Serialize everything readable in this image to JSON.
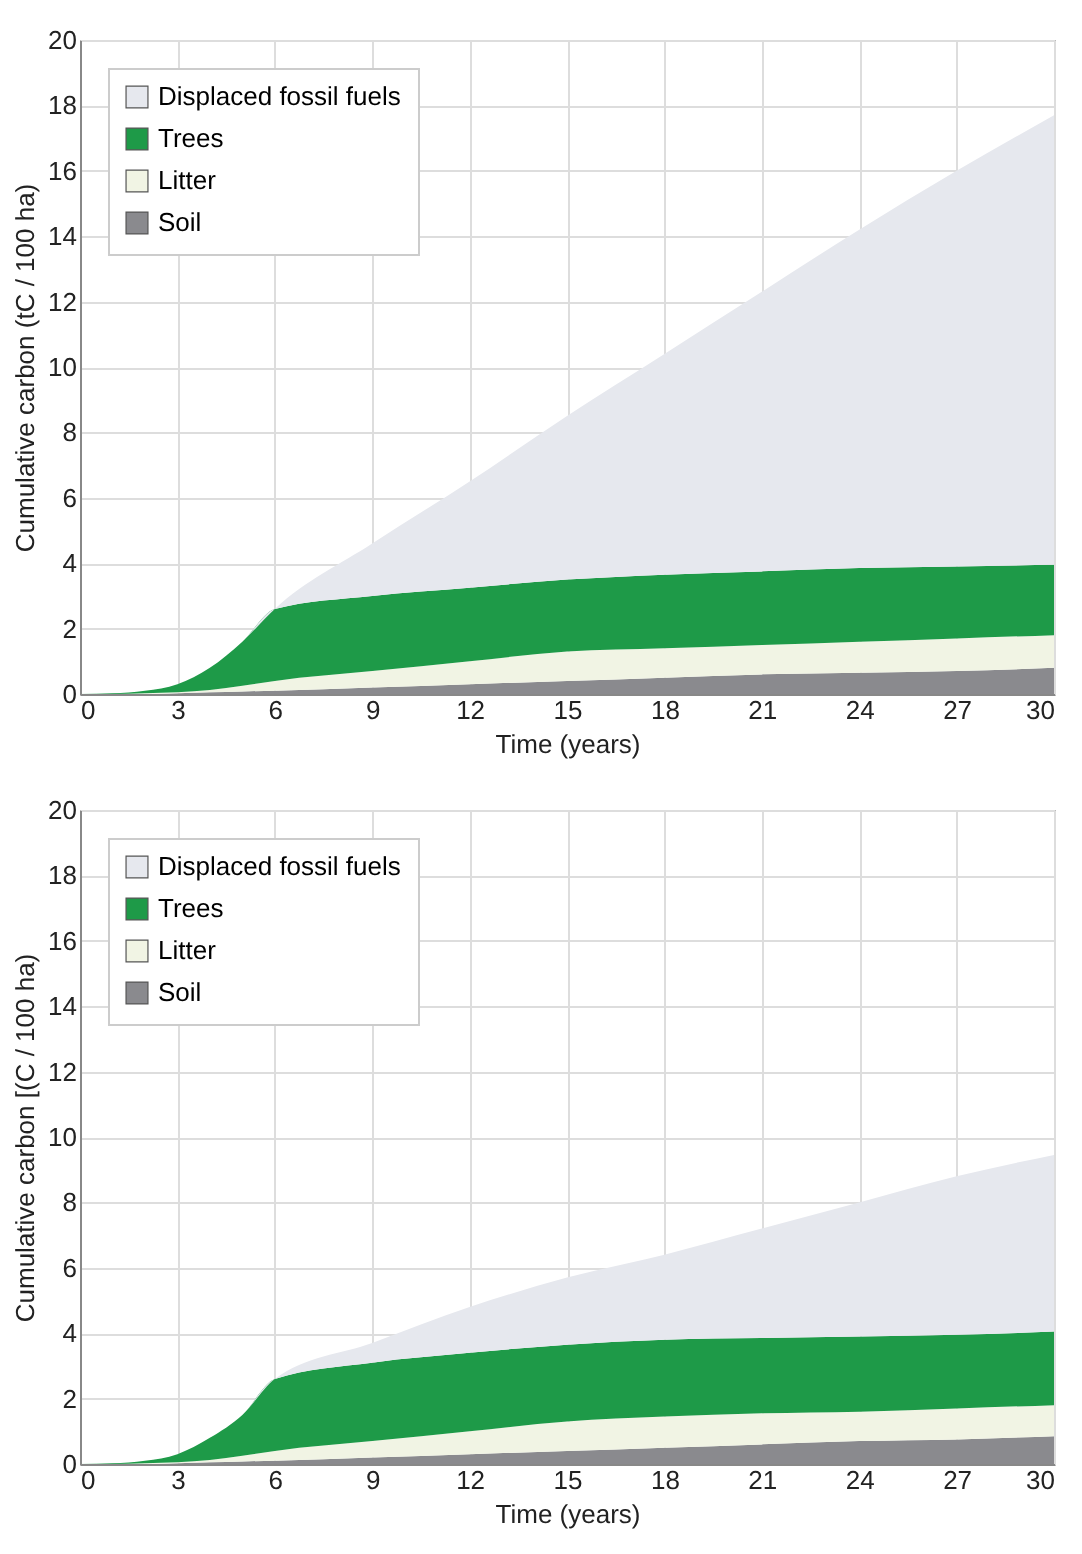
{
  "chart_data": [
    {
      "type": "area",
      "stacked": true,
      "xlabel": "Time (years)",
      "ylabel": "Cumulative carbon (tC / 100 ha)",
      "x": [
        0,
        1,
        2,
        3,
        4,
        5,
        6,
        9,
        12,
        15,
        18,
        21,
        24,
        27,
        30
      ],
      "xlim": [
        0,
        30
      ],
      "xticks": [
        0,
        3,
        6,
        9,
        12,
        15,
        18,
        21,
        24,
        27,
        30
      ],
      "ylim": [
        0,
        20
      ],
      "yticks": [
        0,
        2,
        4,
        6,
        8,
        10,
        12,
        14,
        16,
        18,
        20
      ],
      "grid": true,
      "legend": "top left",
      "series": [
        {
          "name": "Soil",
          "color": "#8a8a8e",
          "values": [
            0,
            0,
            0,
            0.02,
            0.05,
            0.08,
            0.1,
            0.2,
            0.3,
            0.4,
            0.5,
            0.6,
            0.65,
            0.7,
            0.8
          ]
        },
        {
          "name": "Litter",
          "color": "#f1f4e4",
          "values": [
            0,
            0,
            0.02,
            0.03,
            0.07,
            0.17,
            0.3,
            0.5,
            0.7,
            0.9,
            0.9,
            0.9,
            0.95,
            1.0,
            1.0
          ]
        },
        {
          "name": "Trees",
          "color": "#1e9a48",
          "values": [
            0,
            0.02,
            0.08,
            0.25,
            0.68,
            1.35,
            2.2,
            2.3,
            2.25,
            2.2,
            2.25,
            2.25,
            2.25,
            2.2,
            2.15
          ]
        },
        {
          "name": "Displaced fossil fuels",
          "color": "#e6e8ee",
          "values": [
            0,
            0,
            0,
            0,
            0,
            0,
            0,
            1.6,
            3.25,
            5.0,
            6.75,
            8.55,
            10.35,
            12.1,
            13.75
          ]
        }
      ]
    },
    {
      "type": "area",
      "stacked": true,
      "xlabel": "Time (years)",
      "ylabel": "Cumulative carbon [(C / 100 ha)",
      "x": [
        0,
        1,
        2,
        3,
        4,
        5,
        6,
        9,
        12,
        15,
        18,
        21,
        24,
        27,
        30
      ],
      "xlim": [
        0,
        30
      ],
      "xticks": [
        0,
        3,
        6,
        9,
        12,
        15,
        18,
        21,
        24,
        27,
        30
      ],
      "ylim": [
        0,
        20
      ],
      "yticks": [
        0,
        2,
        4,
        6,
        8,
        10,
        12,
        14,
        16,
        18,
        20
      ],
      "grid": true,
      "legend": "top left",
      "series": [
        {
          "name": "Soil",
          "color": "#8a8a8e",
          "values": [
            0,
            0,
            0,
            0.02,
            0.05,
            0.08,
            0.1,
            0.2,
            0.3,
            0.4,
            0.5,
            0.6,
            0.7,
            0.75,
            0.85
          ]
        },
        {
          "name": "Litter",
          "color": "#f1f4e4",
          "values": [
            0,
            0,
            0.02,
            0.03,
            0.07,
            0.17,
            0.3,
            0.5,
            0.7,
            0.9,
            0.95,
            0.95,
            0.9,
            0.95,
            0.95
          ]
        },
        {
          "name": "Trees",
          "color": "#1e9a48",
          "values": [
            0,
            0.02,
            0.08,
            0.25,
            0.68,
            1.25,
            2.2,
            2.4,
            2.4,
            2.35,
            2.35,
            2.3,
            2.3,
            2.25,
            2.25
          ]
        },
        {
          "name": "Displaced fossil fuels",
          "color": "#e6e8ee",
          "values": [
            0,
            0,
            0,
            0,
            0,
            0,
            0,
            0.6,
            1.4,
            2.05,
            2.6,
            3.35,
            4.1,
            4.85,
            5.4
          ]
        }
      ]
    }
  ]
}
